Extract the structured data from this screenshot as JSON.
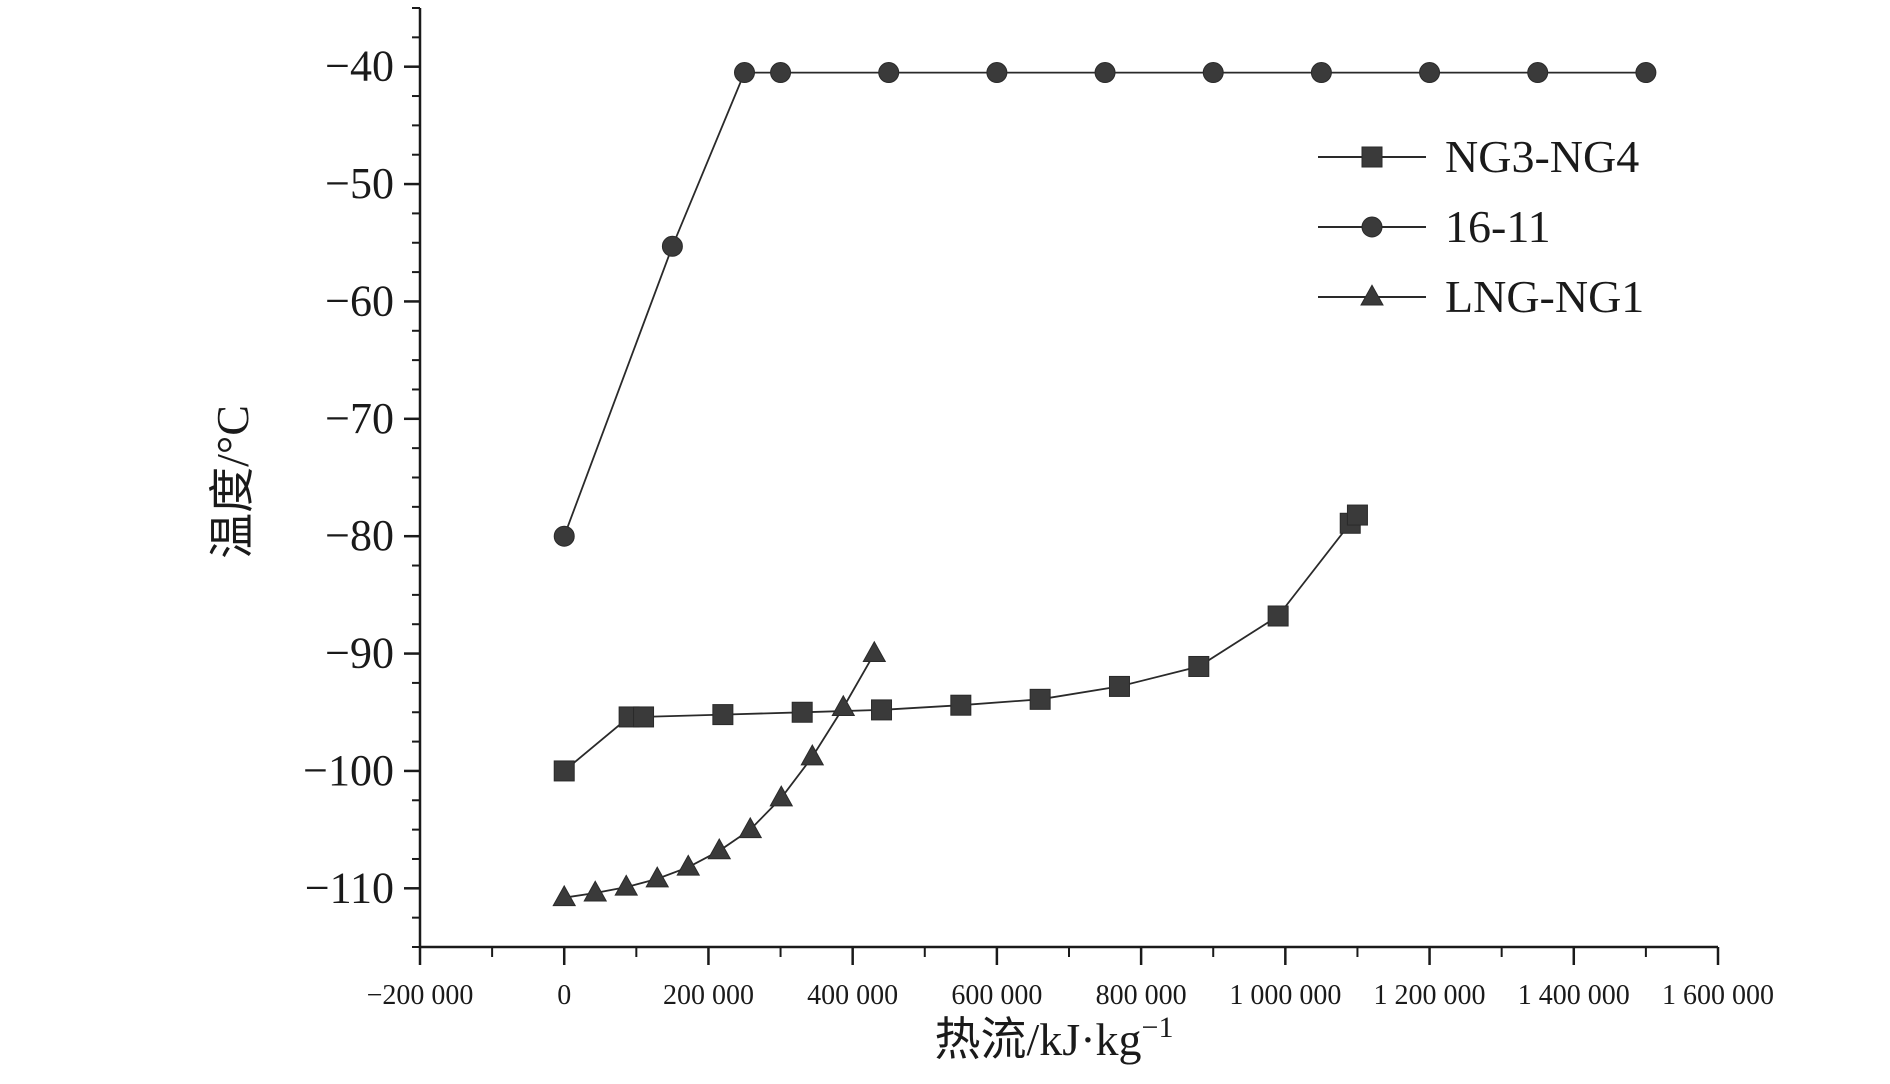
{
  "chart_data": {
    "type": "line",
    "title": "",
    "xlabel": "热流/kJ·kg⁻¹",
    "ylabel": "温度/°C",
    "xlim": [
      -200000,
      1600000
    ],
    "ylim": [
      -115,
      -35
    ],
    "grid": false,
    "legend_position": "top-right",
    "x_ticks": [
      -200000,
      0,
      200000,
      400000,
      600000,
      800000,
      1000000,
      1200000,
      1400000,
      1600000
    ],
    "x_tick_labels": [
      "−200 000",
      "0",
      "200 000",
      "400 000",
      "600 000",
      "800 000",
      "1 000 000",
      "1 200 000",
      "1 400 000",
      "1 600 000"
    ],
    "y_ticks": [
      -110,
      -100,
      -90,
      -80,
      -70,
      -60,
      -50,
      -40
    ],
    "y_tick_labels": [
      "−110",
      "−100",
      "−90",
      "−80",
      "−70",
      "−60",
      "−50",
      "−40"
    ],
    "series": [
      {
        "name": "NG3-NG4",
        "marker": "square",
        "x": [
          0,
          90000,
          110000,
          220000,
          330000,
          440000,
          550000,
          660000,
          770000,
          880000,
          990000,
          1090000,
          1100000
        ],
        "y": [
          -100,
          -95.4,
          -95.4,
          -95.2,
          -95.0,
          -94.8,
          -94.4,
          -93.9,
          -92.8,
          -91.1,
          -86.8,
          -78.9,
          -78.2
        ]
      },
      {
        "name": "16-11",
        "marker": "circle",
        "x": [
          0,
          150000,
          250000,
          300000,
          450000,
          600000,
          750000,
          900000,
          1050000,
          1200000,
          1350000,
          1500000
        ],
        "y": [
          -80,
          -55.3,
          -40.5,
          -40.5,
          -40.5,
          -40.5,
          -40.5,
          -40.5,
          -40.5,
          -40.5,
          -40.5,
          -40.5
        ]
      },
      {
        "name": "LNG-NG1",
        "marker": "triangle",
        "x": [
          0,
          43000,
          86000,
          129000,
          172000,
          215000,
          258000,
          301000,
          344000,
          387000,
          430000
        ],
        "y": [
          -110.8,
          -110.4,
          -109.9,
          -109.2,
          -108.2,
          -106.8,
          -105.0,
          -102.3,
          -98.8,
          -94.6,
          -90.0
        ]
      }
    ]
  }
}
